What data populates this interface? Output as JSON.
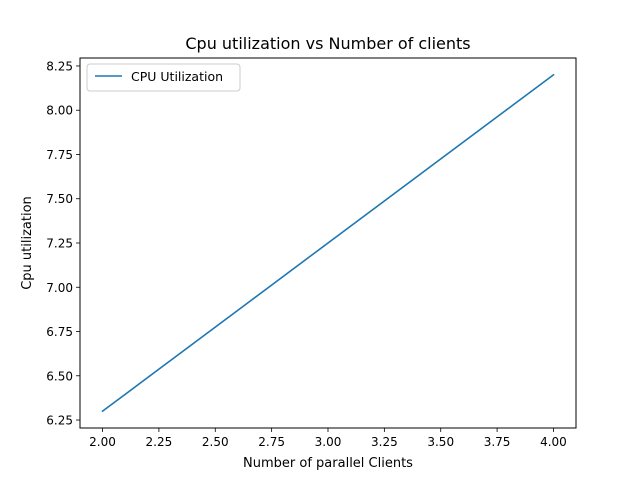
{
  "chart_data": {
    "type": "line",
    "title": "Cpu utilization vs Number of clients",
    "xlabel": "Number of parallel Clients",
    "ylabel": "Cpu utilization",
    "xlim": [
      1.9,
      4.1
    ],
    "ylim": [
      6.205,
      8.295
    ],
    "xticks": [
      2.0,
      2.25,
      2.5,
      2.75,
      3.0,
      3.25,
      3.5,
      3.75,
      4.0
    ],
    "xtick_labels": [
      "2.00",
      "2.25",
      "2.50",
      "2.75",
      "3.00",
      "3.25",
      "3.50",
      "3.75",
      "4.00"
    ],
    "yticks": [
      6.25,
      6.5,
      6.75,
      7.0,
      7.25,
      7.5,
      7.75,
      8.0,
      8.25
    ],
    "ytick_labels": [
      "6.25",
      "6.50",
      "6.75",
      "7.00",
      "7.25",
      "7.50",
      "7.75",
      "8.00",
      "8.25"
    ],
    "grid": false,
    "legend_position": "upper-left",
    "series": [
      {
        "name": "CPU Utilization",
        "color": "#1f77b4",
        "x": [
          2,
          4
        ],
        "y": [
          6.3,
          8.2
        ]
      }
    ]
  }
}
